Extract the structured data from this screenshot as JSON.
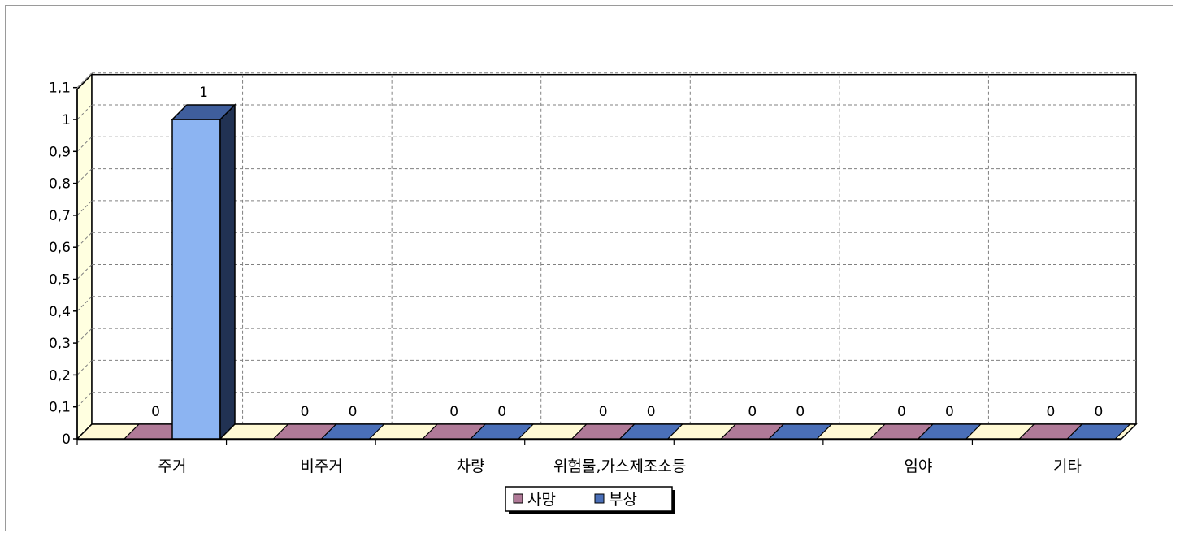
{
  "chart_data": {
    "type": "bar",
    "categories": [
      "주거",
      "비주거",
      "차량",
      "위험물,가스제조소등",
      "",
      "임야",
      "기타"
    ],
    "series": [
      {
        "name": "사망",
        "values": [
          0,
          0,
          0,
          0,
          0,
          0,
          0
        ],
        "color": "#b07a98"
      },
      {
        "name": "부상",
        "values": [
          1,
          0,
          0,
          0,
          0,
          0,
          0
        ],
        "color": "#4a6fb8",
        "highlight_color": "#8cb4f2"
      }
    ],
    "yticks": [
      "0",
      "0,1",
      "0,2",
      "0,3",
      "0,4",
      "0,5",
      "0,6",
      "0,7",
      "0,8",
      "0,9",
      "1",
      "1,1"
    ],
    "ylim": [
      0,
      1.1
    ],
    "grid": true,
    "legend_position": "bottom-center",
    "colors": {
      "wall": "#ffffe0",
      "floor": "#fff9d4",
      "grid": "#808080"
    }
  }
}
